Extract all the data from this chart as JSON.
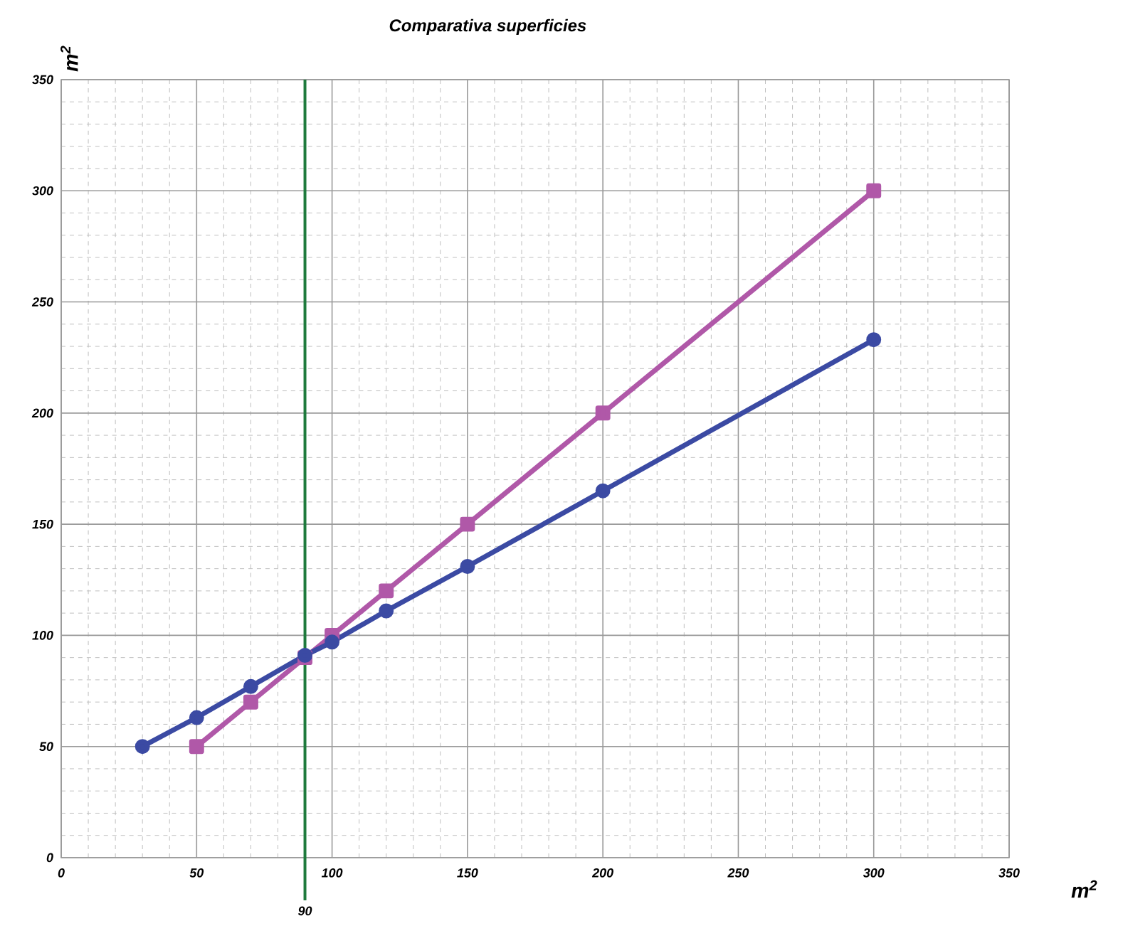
{
  "chart_data": {
    "type": "line",
    "title": "Comparativa superficies",
    "xlabel": "m$^{2}$",
    "ylabel": "m$^{2}$",
    "xlim": [
      0,
      350
    ],
    "ylim": [
      0,
      350
    ],
    "xticks": [
      0,
      50,
      100,
      150,
      200,
      250,
      300,
      350
    ],
    "yticks": [
      0,
      50,
      100,
      150,
      200,
      250,
      300,
      350
    ],
    "grid": true,
    "legend": false,
    "line_style": "solid",
    "series": [
      {
        "color": "#3b4aa3",
        "marker": "circle",
        "x": [
          30,
          50,
          70,
          90,
          100,
          120,
          150,
          200,
          300
        ],
        "values": [
          50,
          63,
          77,
          91,
          97,
          111,
          131,
          165,
          233
        ]
      },
      {
        "color": "#b058a8",
        "marker": "square",
        "x": [
          50,
          70,
          90,
          100,
          120,
          150,
          200,
          300
        ],
        "values": [
          50,
          70,
          90,
          100,
          120,
          150,
          200,
          300
        ]
      }
    ],
    "ref_lines": [
      {
        "axis": "x",
        "value": 90,
        "label": "90",
        "color": "#1e7a3c"
      }
    ]
  }
}
